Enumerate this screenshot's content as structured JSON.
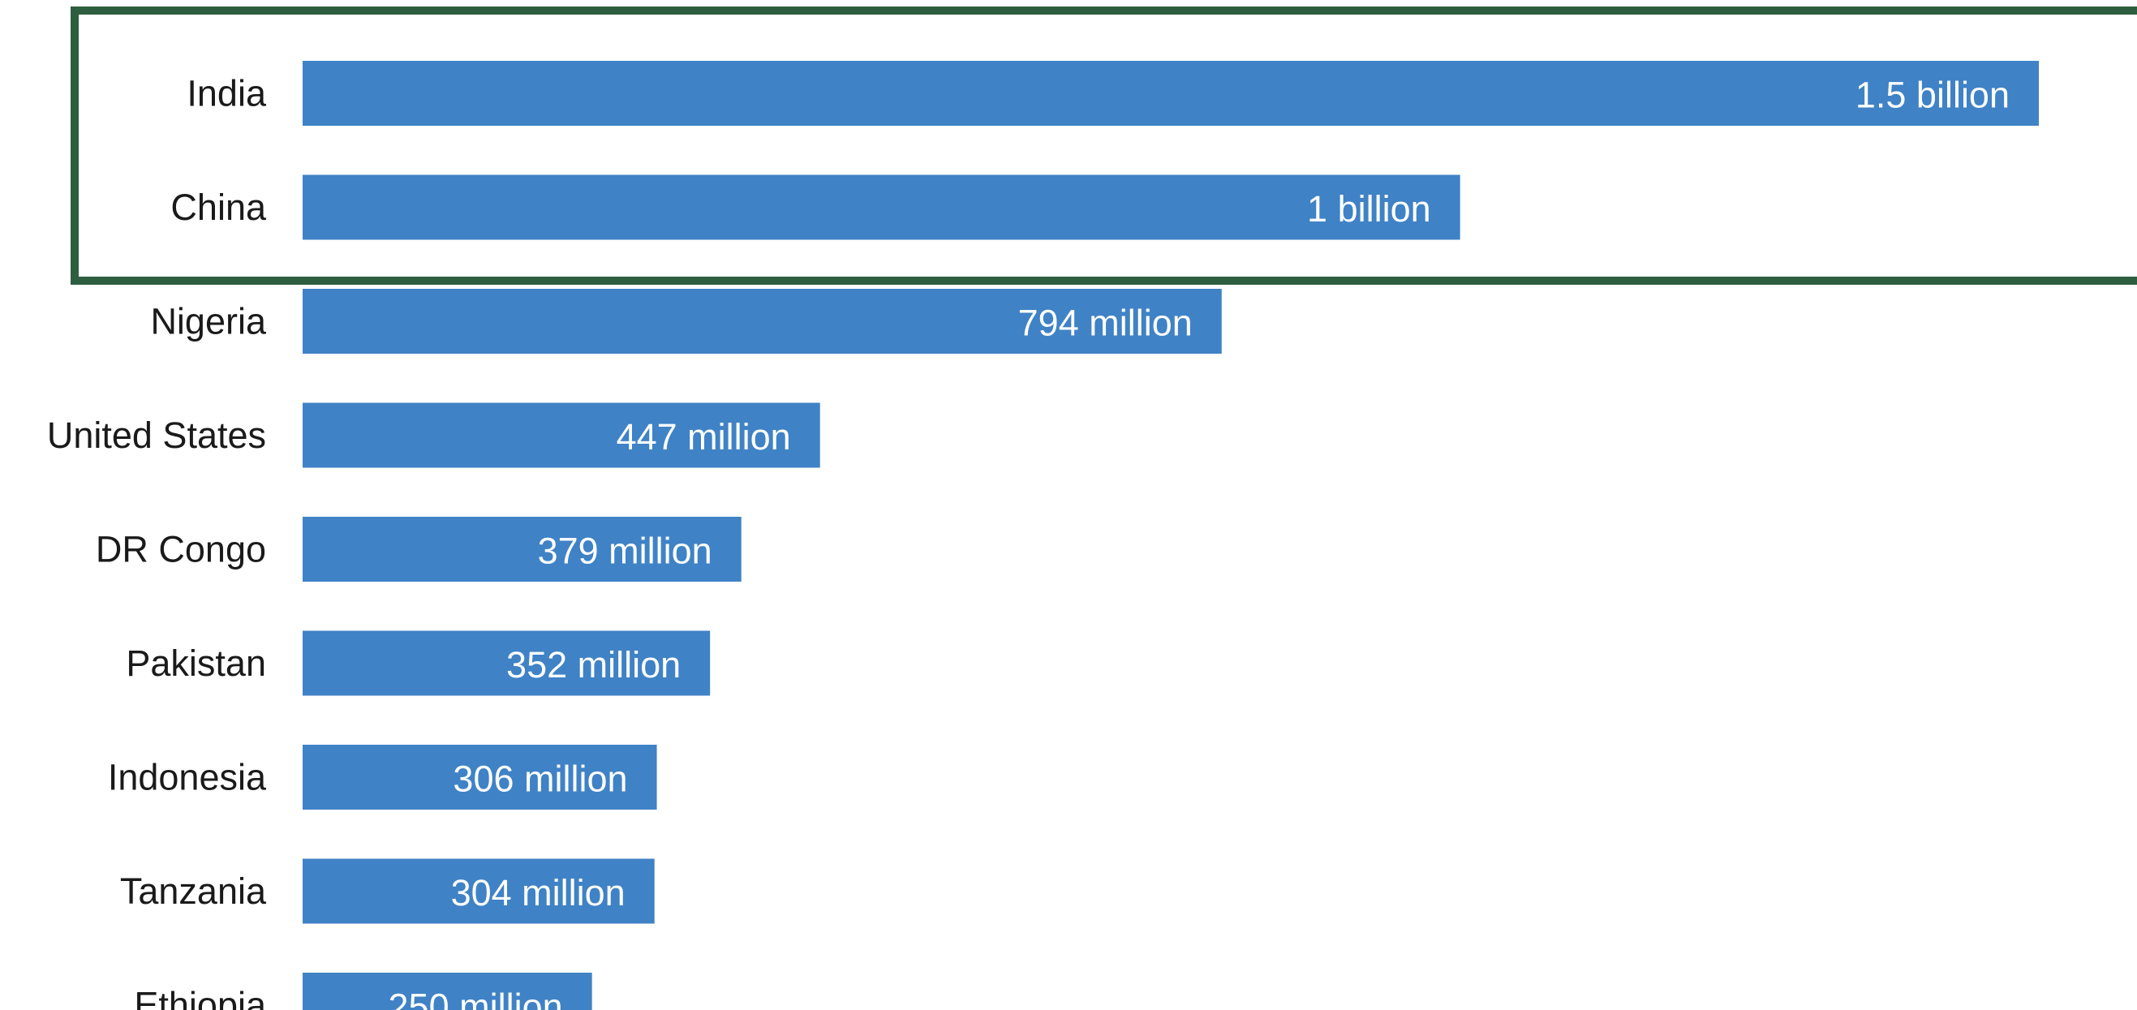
{
  "chart_data": {
    "type": "bar",
    "orientation": "horizontal",
    "categories": [
      "India",
      "China",
      "Nigeria",
      "United States",
      "DR Congo",
      "Pakistan",
      "Indonesia",
      "Tanzania",
      "Ethiopia"
    ],
    "values": [
      1500,
      1000,
      794,
      447,
      379,
      352,
      306,
      304,
      250
    ],
    "value_unit": "million",
    "data_labels": [
      "1.5 billion",
      "1 billion",
      "794 million",
      "447 million",
      "379 million",
      "352 million",
      "306 million",
      "304 million",
      "250 million"
    ],
    "highlight": {
      "categories": [
        "India",
        "China"
      ],
      "border_color": "#2d5e3f"
    },
    "title": "",
    "xlabel": "",
    "ylabel": "",
    "xlim": [
      0,
      1500
    ],
    "grid": false,
    "bar_color": "#3f82c6",
    "label_color": "#1a1a1a",
    "data_label_color": "#ffffff"
  }
}
